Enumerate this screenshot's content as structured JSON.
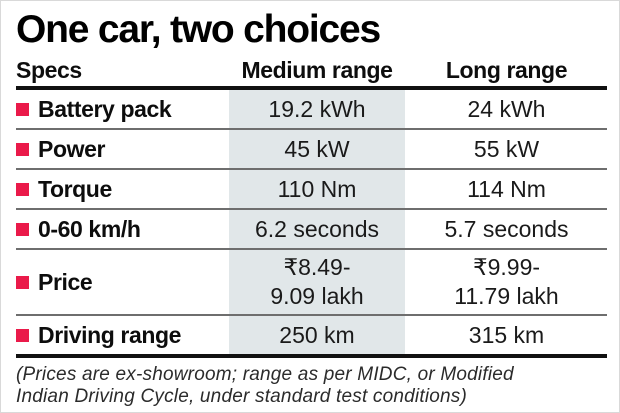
{
  "chart_data": {
    "type": "table",
    "title": "One car, two choices",
    "columns": [
      "Specs",
      "Medium range",
      "Long range"
    ],
    "rows": [
      {
        "spec": "Battery pack",
        "medium_range": "19.2 kWh",
        "long_range": "24 kWh"
      },
      {
        "spec": "Power",
        "medium_range": "45 kW",
        "long_range": "55 kW"
      },
      {
        "spec": "Torque",
        "medium_range": "110 Nm",
        "long_range": "114 Nm"
      },
      {
        "spec": "0-60 km/h",
        "medium_range": "6.2 seconds",
        "long_range": "5.7 seconds"
      },
      {
        "spec": "Price",
        "medium_range": "₹8.49-\n9.09 lakh",
        "long_range": "₹9.99-\n11.79 lakh"
      },
      {
        "spec": "Driving range",
        "medium_range": "250 km",
        "long_range": "315 km"
      }
    ],
    "footnote": "(Prices are ex-showroom; range as per MIDC, or Modified\nIndian Driving Cycle, under standard test conditions)",
    "layout_hints": {
      "highlighted_column": "Medium range",
      "grid": "horizontal row dividers only",
      "legend": "none"
    }
  },
  "colors": {
    "bullet": "#ea1a4a",
    "highlight": "#e1e7e9",
    "rule": "#111111",
    "divider": "#6e6e6e",
    "text": "#141414"
  }
}
